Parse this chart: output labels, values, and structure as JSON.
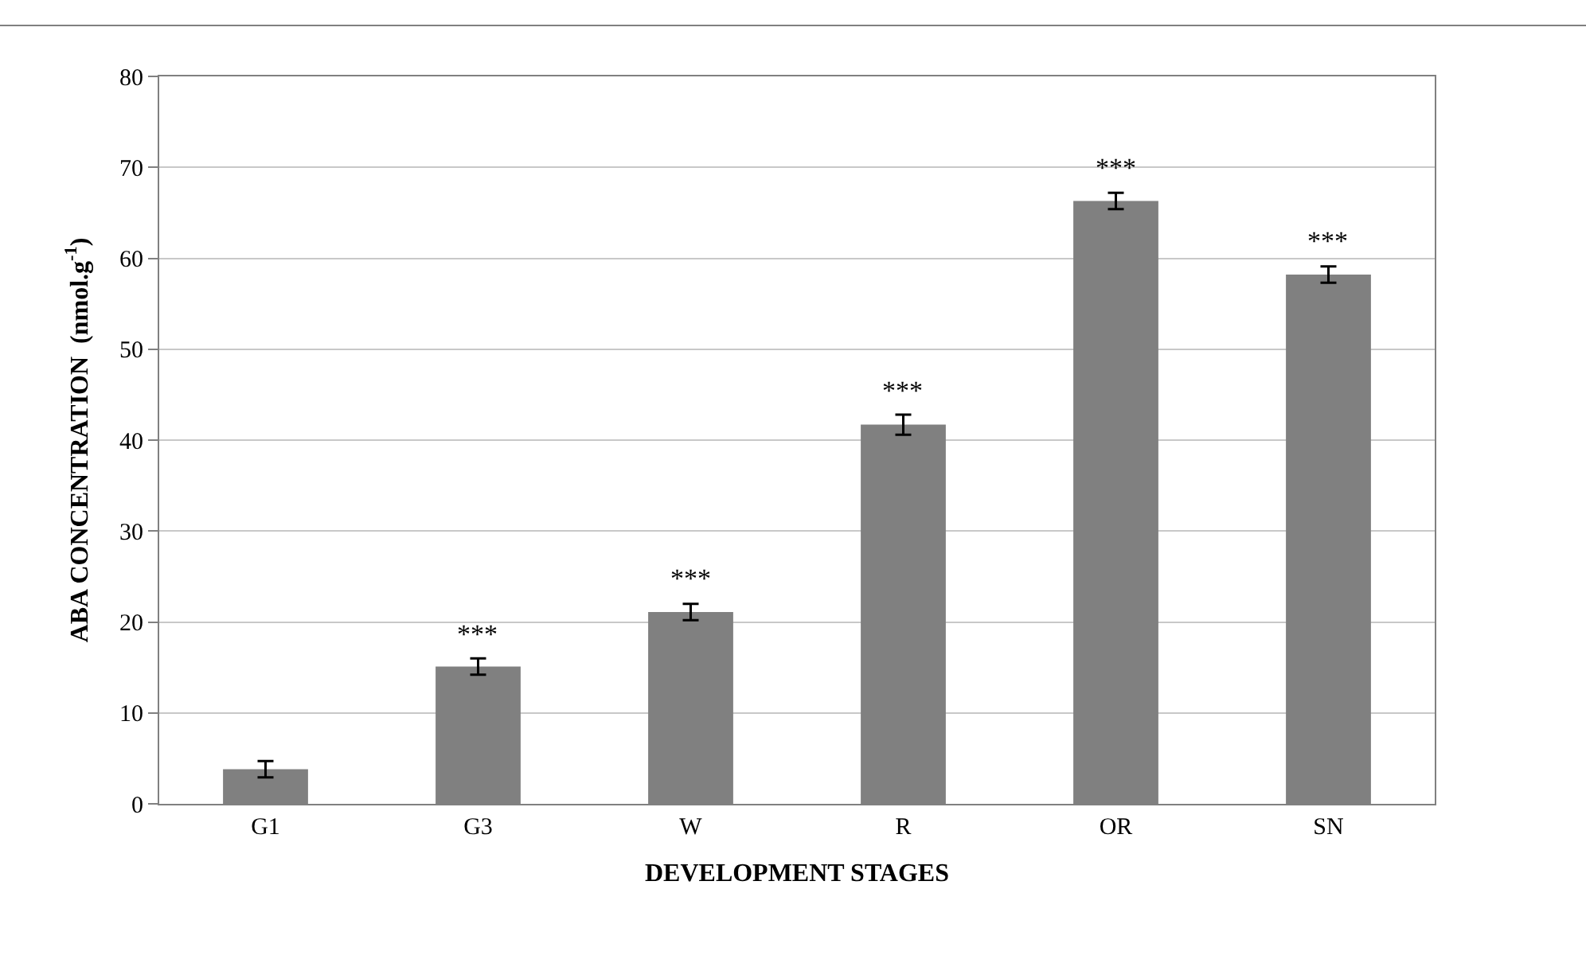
{
  "chart_data": {
    "type": "bar",
    "xlabel": "DEVELOPMENT STAGES",
    "ylabel": "ABA CONCENTRATION  (nmol.g$^{-1}$)",
    "categories": [
      "G1",
      "G3",
      "W",
      "R",
      "OR",
      "SN"
    ],
    "values": [
      3.8,
      15.1,
      21.1,
      41.7,
      66.3,
      58.2
    ],
    "color": "#808080",
    "errors": [
      0.9,
      0.9,
      0.9,
      1.1,
      0.9,
      0.9
    ],
    "ylim": [
      0,
      80
    ],
    "yticks": [
      0,
      10,
      20,
      30,
      40,
      50,
      60,
      70,
      80
    ],
    "grid": "y",
    "annotations": [
      {
        "text": "***",
        "x": "G3",
        "y": 15.1
      },
      {
        "text": "***",
        "x": "W",
        "y": 21.1
      },
      {
        "text": "***",
        "x": "R",
        "y": 41.7
      },
      {
        "text": "***",
        "x": "OR",
        "y": 66.3
      },
      {
        "text": "***",
        "x": "SN",
        "y": 58.2
      }
    ]
  }
}
